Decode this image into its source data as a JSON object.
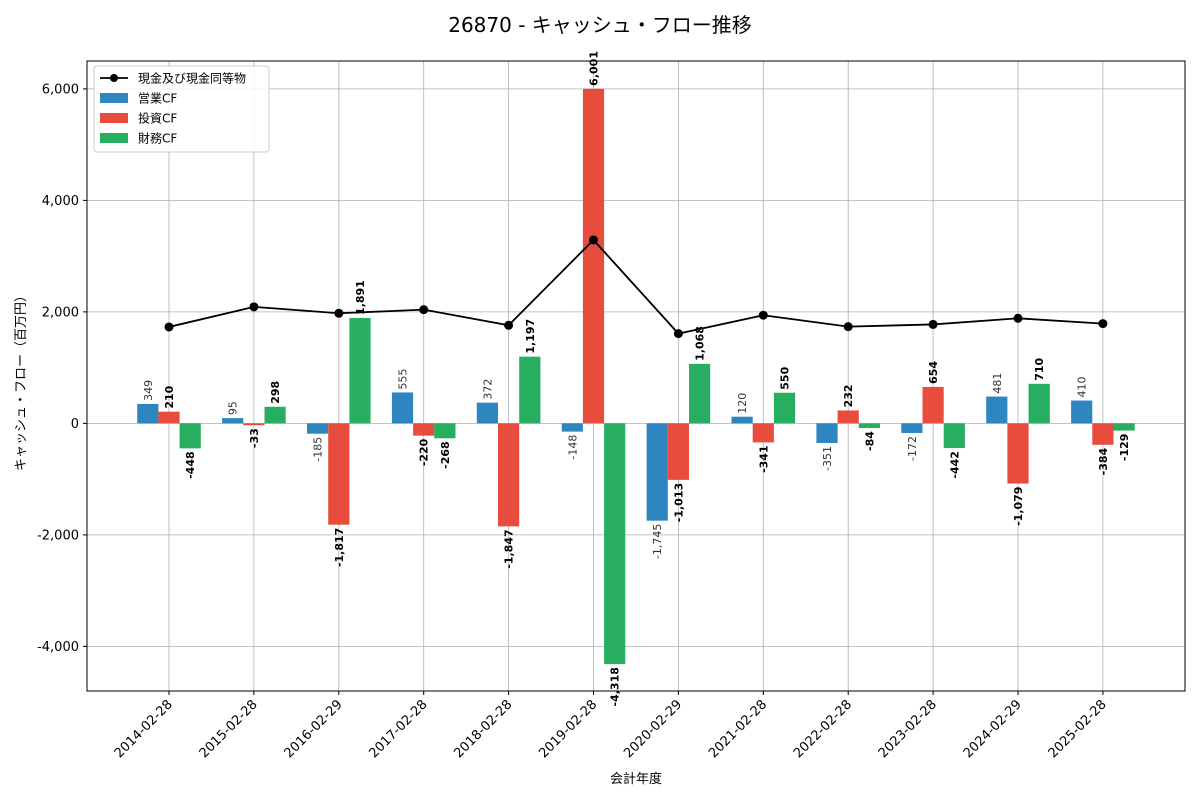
{
  "chart_data": {
    "type": "bar",
    "title": "26870 - キャッシュ・フロー推移",
    "xlabel": "会計年度",
    "ylabel": "キャッシュ・フロー（百万円）",
    "categories": [
      "2014-02-28",
      "2015-02-28",
      "2016-02-29",
      "2017-02-28",
      "2018-02-28",
      "2019-02-28",
      "2020-02-29",
      "2021-02-28",
      "2022-02-28",
      "2023-02-28",
      "2024-02-29",
      "2025-02-28"
    ],
    "ylim": [
      -4800,
      6500
    ],
    "yticks": [
      -4000,
      -2000,
      0,
      2000,
      4000,
      6000
    ],
    "ytick_labels": [
      "-4,000",
      "-2,000",
      "0",
      "2,000",
      "4,000",
      "6,000"
    ],
    "grid": true,
    "legend_position": "top-left",
    "series": [
      {
        "name": "営業CF",
        "kind": "bar",
        "color": "#2e86c1",
        "values": [
          349,
          95,
          -185,
          555,
          372,
          -148,
          -1745,
          120,
          -351,
          -172,
          481,
          410
        ],
        "labels": [
          "349",
          "95",
          "-185",
          "555",
          "372",
          "-148",
          "-1,745",
          "120",
          "-351",
          "-172",
          "481",
          "410"
        ]
      },
      {
        "name": "投資CF",
        "kind": "bar",
        "color": "#e74c3c",
        "values": [
          210,
          -33,
          -1817,
          -220,
          -1847,
          6001,
          -1013,
          -341,
          232,
          654,
          -1079,
          -384
        ],
        "labels": [
          "210",
          "-33",
          "-1,817",
          "-220",
          "-1,847",
          "6,001",
          "-1,013",
          "-341",
          "232",
          "654",
          "-1,079",
          "-384"
        ]
      },
      {
        "name": "財務CF",
        "kind": "bar",
        "color": "#27ae60",
        "values": [
          -448,
          298,
          1891,
          -268,
          1197,
          -4318,
          1068,
          550,
          -84,
          -442,
          710,
          -129
        ],
        "labels": [
          "-448",
          "298",
          "1,891",
          "-268",
          "1,197",
          "-4,318",
          "1,068",
          "550",
          "-84",
          "-442",
          "710",
          "-129"
        ]
      },
      {
        "name": "現金及び現金同等物",
        "kind": "line",
        "color": "#000000",
        "values": [
          1730,
          2090,
          1975,
          2040,
          1760,
          3290,
          1610,
          1940,
          1735,
          1775,
          1885,
          1790
        ]
      }
    ]
  }
}
